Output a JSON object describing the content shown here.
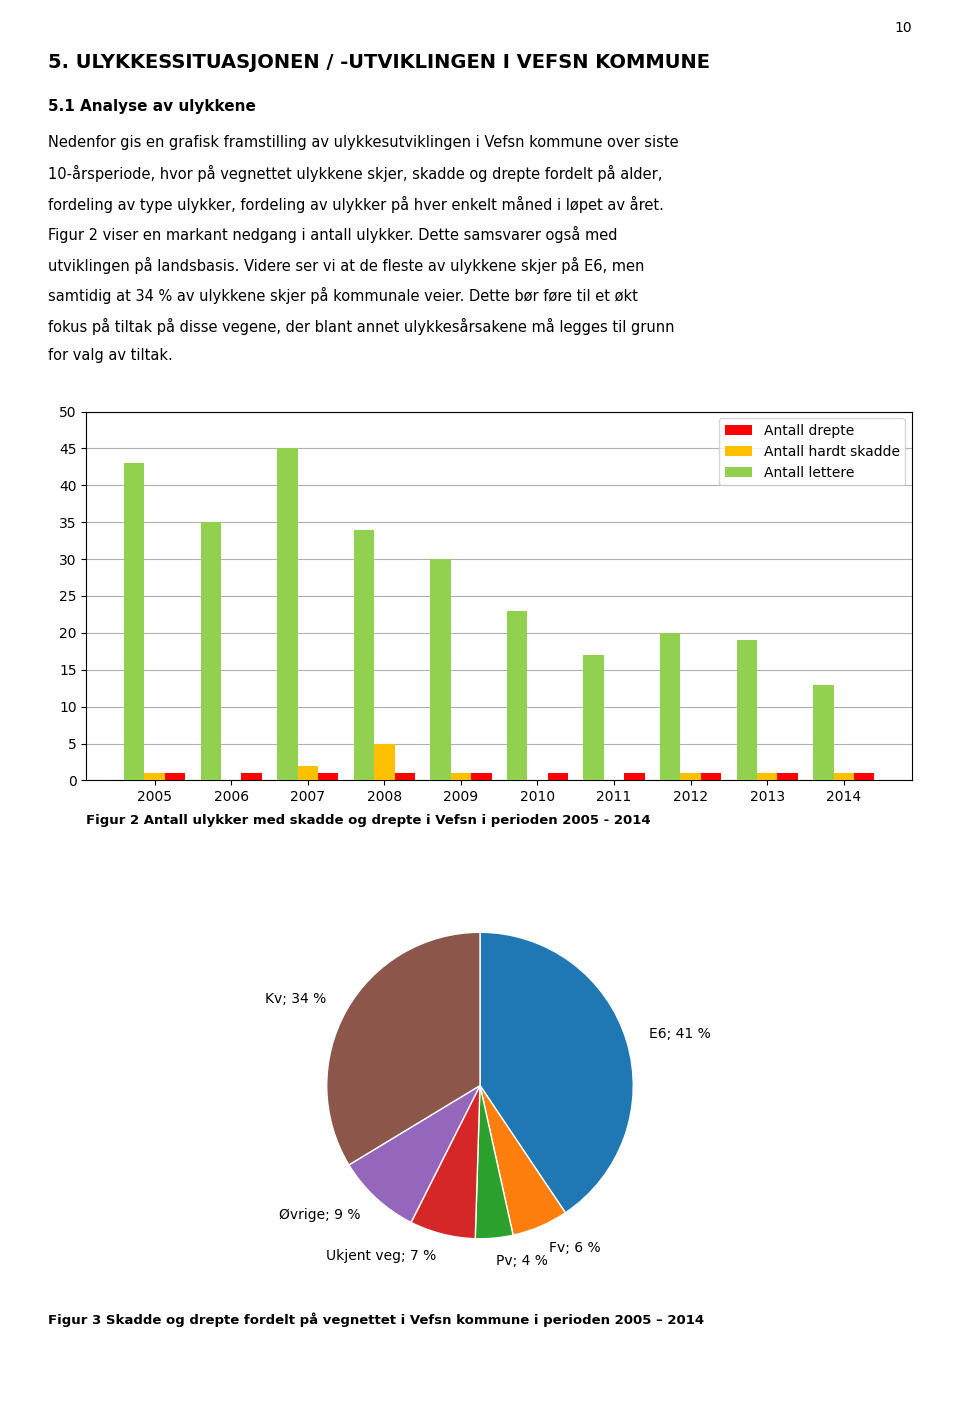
{
  "page_number": "10",
  "title": "5. ULYKKESSITUASJONEN / -UTVIKLINGEN I VEFSN KOMMUNE",
  "subtitle": "5.1 Analyse av ulykkene",
  "text": [
    "Nedenfor gis en grafisk framstilling av ulykkesutviklingen i Vefsn kommune over siste",
    "10-årsperiode, hvor på vegnettet ulykkene skjer, skadde og drepte fordelt på alder,",
    "fordeling av type ulykker, fordeling av ulykker på hver enkelt måned i løpet av året.",
    "Figur 2 viser en markant nedgang i antall ulykker. Dette samsvarer også med",
    "utviklingen på landsbasis. Videre ser vi at de fleste av ulykkene skjer på E6, men",
    "samtidig at 34 % av ulykkene skjer på kommunale veier. Dette bør føre til et økt",
    "fokus på tiltak på disse vegene, der blant annet ulykkesårsakene må legges til grunn",
    "for valg av tiltak."
  ],
  "chart_data": [
    {
      "type": "bar",
      "title": "Figur 2 Antall ulykker med skadde og drepte i Vefsn i perioden 2005 - 2014",
      "categories": [
        "2005",
        "2006",
        "2007",
        "2008",
        "2009",
        "2010",
        "2011",
        "2012",
        "2013",
        "2014"
      ],
      "series": [
        {
          "name": "Antall lettere",
          "color": "#92D050",
          "values": [
            43,
            35,
            45,
            34,
            30,
            23,
            17,
            20,
            19,
            13
          ]
        },
        {
          "name": "Antall hardt skadde",
          "color": "#FFC000",
          "values": [
            1,
            0,
            2,
            5,
            1,
            0,
            0,
            1,
            1,
            1
          ]
        },
        {
          "name": "Antall drepte",
          "color": "#FF0000",
          "values": [
            1,
            1,
            1,
            1,
            1,
            1,
            1,
            1,
            1,
            1
          ]
        }
      ],
      "ylim": [
        0,
        50
      ],
      "yticks": [
        0,
        5,
        10,
        15,
        20,
        25,
        30,
        35,
        40,
        45,
        50
      ],
      "grid": true,
      "legend": "upper right"
    },
    {
      "type": "pie",
      "title": "Figur 3 Skadde og drepte fordelt på vegnettet i Vefsn kommune i perioden 2005 – 2014",
      "categories": [
        "E6; 41 %",
        "Fv; 6 %",
        "Pv; 4 %",
        "Ukjent veg; 7 %",
        "Øvrige; 9 %",
        "Kv; 34 %"
      ],
      "values": [
        41,
        6,
        4,
        7,
        9,
        34
      ]
    }
  ]
}
